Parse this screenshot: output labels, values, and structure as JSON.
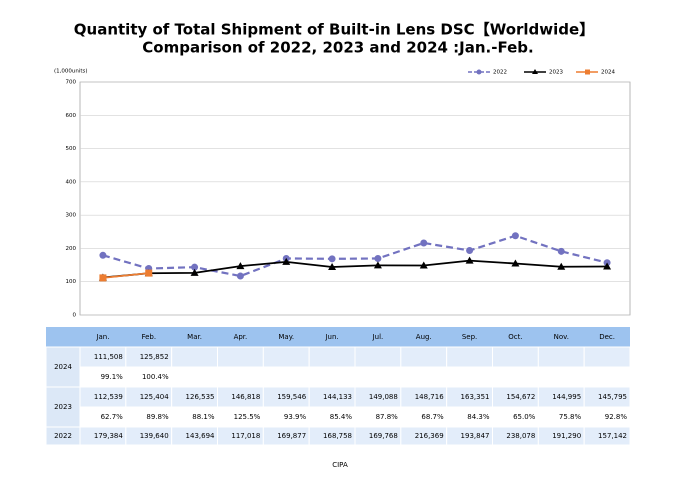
{
  "chart_data": {
    "type": "line",
    "title": "Quantity of Total Shipment of Built-in Lens DSC【Worldwide】",
    "subtitle": "Comparison of 2022, 2023 and 2024 :Jan.-Feb.",
    "y_unit": "(1,000units)",
    "source": "CIPA",
    "categories": [
      "Jan.",
      "Feb.",
      "Mar.",
      "Apr.",
      "May.",
      "Jun.",
      "Jul.",
      "Aug.",
      "Sep.",
      "Oct.",
      "Nov.",
      "Dec."
    ],
    "ylim": [
      0,
      700
    ],
    "yticks": [
      0,
      100,
      200,
      300,
      400,
      500,
      600,
      700
    ],
    "grid": true,
    "legend": "top-right",
    "series": [
      {
        "name": "2024",
        "color": "#ed7d31",
        "marker": "square",
        "dashed": false,
        "values": [
          111.508,
          125.852,
          null,
          null,
          null,
          null,
          null,
          null,
          null,
          null,
          null,
          null
        ],
        "value_labels": [
          "111,508",
          "125,852",
          null,
          null,
          null,
          null,
          null,
          null,
          null,
          null,
          null,
          null
        ],
        "ratio_labels": [
          "99.1%",
          "100.4%",
          null,
          null,
          null,
          null,
          null,
          null,
          null,
          null,
          null,
          null
        ]
      },
      {
        "name": "2023",
        "color": "#000000",
        "marker": "triangle",
        "dashed": false,
        "values": [
          112.539,
          125.404,
          126.535,
          146.818,
          159.546,
          144.133,
          149.088,
          148.716,
          163.351,
          154.672,
          144.995,
          145.795
        ],
        "value_labels": [
          "112,539",
          "125,404",
          "126,535",
          "146,818",
          "159,546",
          "144,133",
          "149,088",
          "148,716",
          "163,351",
          "154,672",
          "144,995",
          "145,795"
        ],
        "ratio_labels": [
          "62.7%",
          "89.8%",
          "88.1%",
          "125.5%",
          "93.9%",
          "85.4%",
          "87.8%",
          "68.7%",
          "84.3%",
          "65.0%",
          "75.8%",
          "92.8%"
        ]
      },
      {
        "name": "2022",
        "color": "#7272c0",
        "marker": "circle",
        "dashed": true,
        "values": [
          179.384,
          139.64,
          143.694,
          117.018,
          169.877,
          168.758,
          169.768,
          216.369,
          193.847,
          238.078,
          191.29,
          157.142
        ],
        "value_labels": [
          "179,384",
          "139,640",
          "143,694",
          "117,018",
          "169,877",
          "168,758",
          "169,768",
          "216,369",
          "193,847",
          "238,078",
          "191,290",
          "157,142"
        ],
        "ratio_labels": null
      }
    ]
  }
}
